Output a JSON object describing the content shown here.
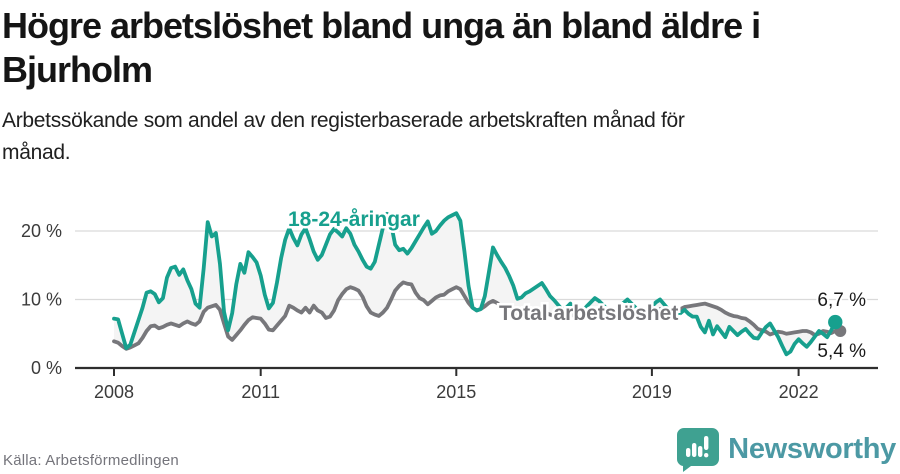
{
  "header": {
    "title": "Högre arbetslöshet bland unga än bland äldre i Bjurholm",
    "title_line1": "Högre arbetslöshet bland unga än bland äldre i",
    "title_line2": "Bjurholm",
    "subtitle_line1": "Arbetssökande som andel av den registerbaserade arbetskraften månad för",
    "subtitle_line2": "månad."
  },
  "footer": {
    "source": "Källa: Arbetsförmedlingen",
    "brand": "Newsworthy"
  },
  "colors": {
    "youth_line": "#17a08e",
    "total_line": "#77777b",
    "between_area": "#f4f4f4",
    "gridline": "#dadada",
    "axis": "#2e2e2e",
    "tick_label": "#3b3b3b",
    "end_label": "#1a1a1a",
    "logo_icon": "#3fa191",
    "logo_text": "#4c99a4"
  },
  "chart_data": {
    "type": "line",
    "title": "Högre arbetslöshet bland unga än bland äldre i Bjurholm",
    "subtitle": "Arbetssökande som andel av den registerbaserade arbetskraften månad för månad.",
    "unit": "percent of registered labour force",
    "frequency": "monthly",
    "x_start_year": 2008,
    "x_start_month": 1,
    "x_end_year": 2022,
    "x_end_month": 10,
    "ylim": [
      0,
      23.5
    ],
    "yticks": [
      0,
      10,
      20
    ],
    "ytick_labels": [
      "0 %",
      "10 %",
      "20 %"
    ],
    "xticks": [
      2008,
      2011,
      2015,
      2019,
      2022
    ],
    "grid": "horizontal",
    "legend_position": "inline-labels",
    "end_labels": [
      "6,7 %",
      "5,4 %"
    ],
    "series": [
      {
        "name": "18-24-åringar",
        "color": "#17a08e",
        "last_value_label": "6,7 %",
        "values": [
          7.2,
          7.1,
          5.0,
          2.9,
          3.4,
          5.2,
          7.0,
          8.8,
          11.0,
          11.2,
          10.8,
          9.6,
          10.2,
          13.2,
          14.6,
          14.8,
          13.6,
          14.4,
          12.8,
          11.5,
          9.4,
          8.8,
          14.5,
          21.3,
          19.2,
          19.7,
          15.2,
          8.2,
          5.5,
          8.0,
          12.2,
          15.2,
          13.9,
          16.9,
          16.2,
          15.4,
          13.5,
          10.7,
          8.7,
          9.5,
          12.5,
          16.0,
          18.7,
          20.4,
          19.0,
          17.9,
          19.5,
          20.4,
          18.8,
          17.0,
          15.8,
          16.5,
          18.0,
          19.5,
          20.3,
          19.8,
          19.2,
          20.4,
          19.6,
          18.0,
          17.0,
          15.8,
          14.8,
          14.5,
          15.5,
          18.0,
          20.5,
          22.5,
          21.0,
          18.0,
          17.2,
          17.4,
          16.7,
          17.5,
          18.5,
          19.5,
          20.5,
          21.4,
          19.6,
          20.0,
          20.8,
          21.5,
          22.0,
          22.3,
          22.6,
          21.5,
          17.0,
          12.0,
          8.8,
          8.4,
          8.6,
          10.5,
          14.0,
          17.6,
          16.5,
          15.5,
          14.6,
          13.4,
          12.0,
          10.1,
          10.3,
          10.9,
          11.2,
          11.6,
          12.0,
          12.4,
          11.5,
          10.5,
          9.9,
          9.2,
          8.5,
          8.8,
          9.4,
          8.7,
          7.8,
          8.3,
          9.0,
          9.6,
          10.2,
          9.8,
          9.2,
          8.6,
          8.0,
          8.4,
          9.0,
          9.5,
          10.0,
          9.4,
          8.8,
          8.2,
          7.8,
          8.4,
          9.0,
          9.6,
          10.0,
          9.3,
          8.6,
          8.0,
          7.6,
          8.0,
          8.5,
          7.9,
          7.5,
          7.5,
          6.0,
          5.2,
          6.9,
          4.9,
          6.1,
          5.3,
          4.5,
          6.0,
          5.4,
          4.8,
          5.3,
          5.7,
          5.0,
          4.4,
          4.3,
          5.2,
          6.0,
          6.5,
          5.5,
          4.5,
          3.2,
          2.0,
          2.4,
          3.5,
          4.2,
          3.6,
          3.1,
          3.8,
          4.6,
          5.4,
          5.0,
          4.5,
          5.5,
          6.7
        ]
      },
      {
        "name": "Total arbetslöshet",
        "color": "#77777b",
        "last_value_label": "5,4 %",
        "values": [
          3.9,
          3.7,
          3.2,
          2.8,
          3.0,
          3.3,
          3.6,
          4.4,
          5.4,
          6.1,
          6.2,
          5.8,
          6.0,
          6.3,
          6.5,
          6.3,
          6.1,
          6.5,
          6.8,
          6.5,
          6.3,
          6.8,
          8.2,
          8.8,
          9.0,
          9.2,
          8.5,
          6.5,
          4.6,
          4.1,
          4.8,
          5.5,
          6.3,
          7.0,
          7.4,
          7.3,
          7.2,
          6.5,
          5.6,
          5.5,
          6.2,
          6.9,
          7.6,
          9.1,
          8.8,
          8.4,
          8.1,
          8.8,
          8.1,
          9.1,
          8.4,
          8.1,
          7.3,
          7.5,
          8.4,
          9.9,
          10.8,
          11.5,
          11.8,
          11.6,
          11.3,
          10.4,
          9.0,
          8.1,
          7.8,
          7.6,
          8.1,
          8.8,
          10.0,
          11.3,
          12.0,
          12.5,
          12.3,
          12.2,
          11.0,
          10.2,
          9.9,
          9.3,
          9.8,
          10.3,
          10.6,
          10.7,
          11.2,
          11.5,
          11.8,
          11.5,
          10.5,
          9.5,
          8.8,
          8.4,
          8.6,
          9.0,
          9.5,
          9.8,
          9.5,
          9.0,
          8.6,
          8.3,
          8.0,
          7.8,
          7.6,
          7.4,
          7.8,
          8.2,
          8.5,
          8.3,
          8.0,
          7.8,
          7.6,
          7.4,
          7.2,
          7.5,
          7.8,
          7.6,
          7.3,
          7.5,
          7.8,
          8.0,
          8.2,
          8.0,
          7.8,
          7.6,
          7.4,
          7.6,
          7.9,
          8.1,
          8.3,
          8.1,
          7.9,
          7.7,
          7.8,
          8.0,
          8.2,
          8.4,
          8.6,
          8.4,
          8.2,
          8.0,
          8.3,
          8.6,
          8.9,
          9.0,
          9.1,
          9.2,
          9.3,
          9.4,
          9.2,
          9.0,
          8.8,
          8.5,
          8.1,
          7.8,
          7.6,
          7.5,
          7.3,
          7.2,
          6.8,
          6.3,
          5.7,
          5.5,
          5.3,
          4.9,
          5.1,
          5.3,
          5.2,
          5.0,
          5.1,
          5.2,
          5.3,
          5.4,
          5.4,
          5.2,
          4.8,
          5.0,
          5.4,
          5.3,
          5.1,
          5.4
        ]
      }
    ]
  }
}
